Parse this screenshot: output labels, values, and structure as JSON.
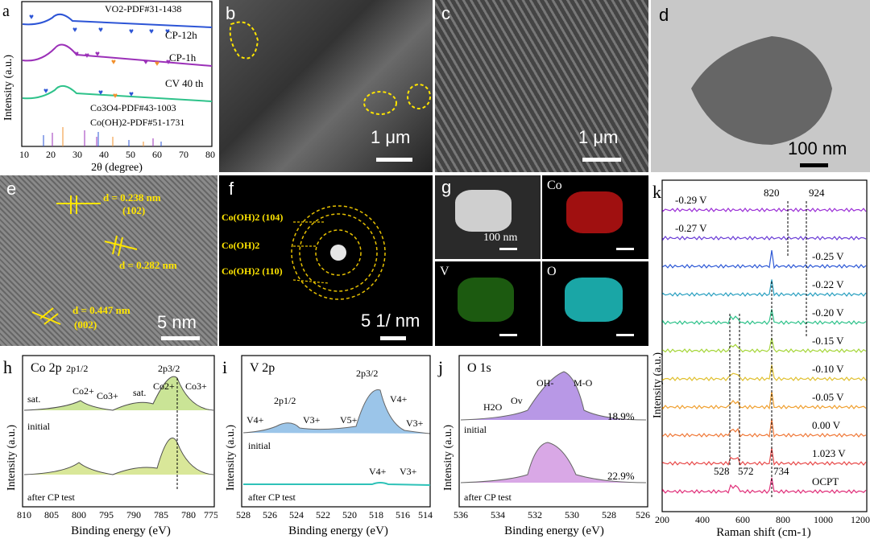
{
  "a": {
    "label": "a",
    "xlabel": "2θ (degree)",
    "ylabel": "Intensity (a.u.)",
    "xticks": [
      "10",
      "20",
      "30",
      "40",
      "50",
      "60",
      "70",
      "80"
    ],
    "legend_vo2": "VO2-PDF#31-1438",
    "traces": [
      "CP-12h",
      "CP-1h",
      "CV 40 th"
    ],
    "legend_co3o4": "Co3O4-PDF#43-1003",
    "legend_cooh": "Co(OH)2-PDF#51-1731",
    "colors": {
      "cp12": "#2d55d6",
      "cp1": "#9b30b8",
      "cv40": "#2ec28a",
      "vo2": "#f2902c"
    }
  },
  "b": {
    "label": "b",
    "scale": "1 μm"
  },
  "c": {
    "label": "c",
    "scale": "1 μm"
  },
  "d": {
    "label": "d",
    "scale": "100 nm"
  },
  "e": {
    "label": "e",
    "scale": "5 nm",
    "d1": "d = 0.238 nm",
    "h1": "(102)",
    "d2": "d = 0.282 nm",
    "d3": "d = 0.447 nm",
    "h3": "(002)"
  },
  "f": {
    "label": "f",
    "scale": "5 1/ nm",
    "rings": [
      "Co(OH)2 (104)",
      "Co(OH)2",
      "Co(OH)2 (110)"
    ]
  },
  "g": {
    "label": "g",
    "scale": "100 nm",
    "maps": [
      "Co",
      "V",
      "O"
    ]
  },
  "h": {
    "label": "h",
    "title": "Co 2p",
    "xlabel": "Binding energy (eV)",
    "ylabel": "Intensity (a.u.)",
    "xticks": [
      "810",
      "805",
      "800",
      "795",
      "790",
      "785",
      "780",
      "775"
    ],
    "peaks": [
      "2p1/2",
      "2p3/2",
      "sat.",
      "Co2+",
      "Co3+",
      "sat.",
      "Co2+",
      "Co3+"
    ],
    "initial": "initial",
    "after": "after CP test"
  },
  "i": {
    "label": "i",
    "title": "V 2p",
    "xlabel": "Binding energy (eV)",
    "ylabel": "Intensity (a.u.)",
    "xticks": [
      "528",
      "526",
      "524",
      "522",
      "520",
      "518",
      "516",
      "514"
    ],
    "peaks": [
      "2p1/2",
      "2p3/2",
      "V4+",
      "V3+",
      "V5+",
      "V4+",
      "V3+",
      "V4+",
      "V3+"
    ],
    "initial": "initial",
    "after": "after CP test"
  },
  "j": {
    "label": "j",
    "title": "O 1s",
    "xlabel": "Binding energy (eV)",
    "ylabel": "Intensity (a.u.)",
    "xticks": [
      "536",
      "534",
      "532",
      "530",
      "528",
      "526"
    ],
    "peaks": [
      "H2O",
      "Ov",
      "OH-",
      "M-O"
    ],
    "pct1": "18.9%",
    "pct2": "22.9%",
    "initial": "initial",
    "after": "after CP test"
  },
  "k": {
    "label": "k",
    "xlabel": "Raman shift (cm-1)",
    "ylabel": "Intensity (a.u.)",
    "xticks": [
      "200",
      "400",
      "600",
      "800",
      "1000",
      "1200"
    ],
    "lines": [
      "-0.29 V",
      "-0.27 V",
      "-0.25 V",
      "-0.22 V",
      "-0.20 V",
      "-0.15 V",
      "-0.10 V",
      "-0.05 V",
      "0.00 V",
      "1.023 V",
      "OCPT"
    ],
    "markers": [
      "820",
      "924",
      "528",
      "572",
      "734"
    ]
  }
}
